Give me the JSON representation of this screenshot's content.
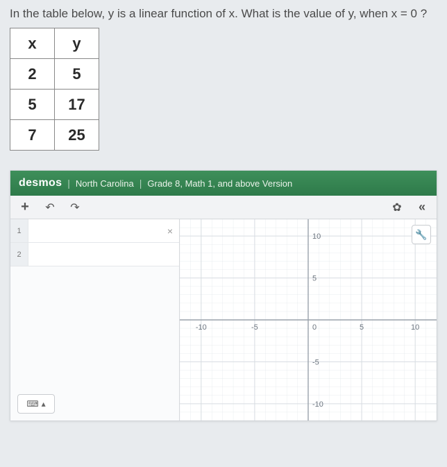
{
  "question": "In the table below, y is a linear function of x. What is the value of y, when x = 0 ?",
  "table": {
    "columns": [
      "x",
      "y"
    ],
    "rows": [
      [
        "2",
        "5"
      ],
      [
        "5",
        "17"
      ],
      [
        "7",
        "25"
      ]
    ],
    "border_color": "#888888",
    "text_color": "#2a2a2a",
    "cell_fontsize": 22
  },
  "desmos": {
    "brand": "desmos",
    "region": "North Carolina",
    "version": "Grade 8, Math 1, and above Version",
    "header_bg": "#2e7a4a",
    "toolbar": {
      "add": "+",
      "undo": "↶",
      "redo": "↷",
      "settings": "✿",
      "collapse": "«"
    },
    "expressions": [
      {
        "index": "1",
        "content": ""
      },
      {
        "index": "2",
        "content": ""
      }
    ],
    "expr_delete": "×",
    "keyboard_icon": "⌨",
    "keyboard_caret": "▴",
    "wrench_icon": "🔧",
    "graph": {
      "xlim": [
        -12,
        12
      ],
      "ylim": [
        -12,
        12
      ],
      "ticks": [
        -10,
        -5,
        0,
        5,
        10
      ],
      "grid_color": "#d7dce1",
      "axis_color": "#9aa2ab",
      "label_color": "#6d7680",
      "label_fontsize": 11,
      "background": "#ffffff"
    }
  }
}
